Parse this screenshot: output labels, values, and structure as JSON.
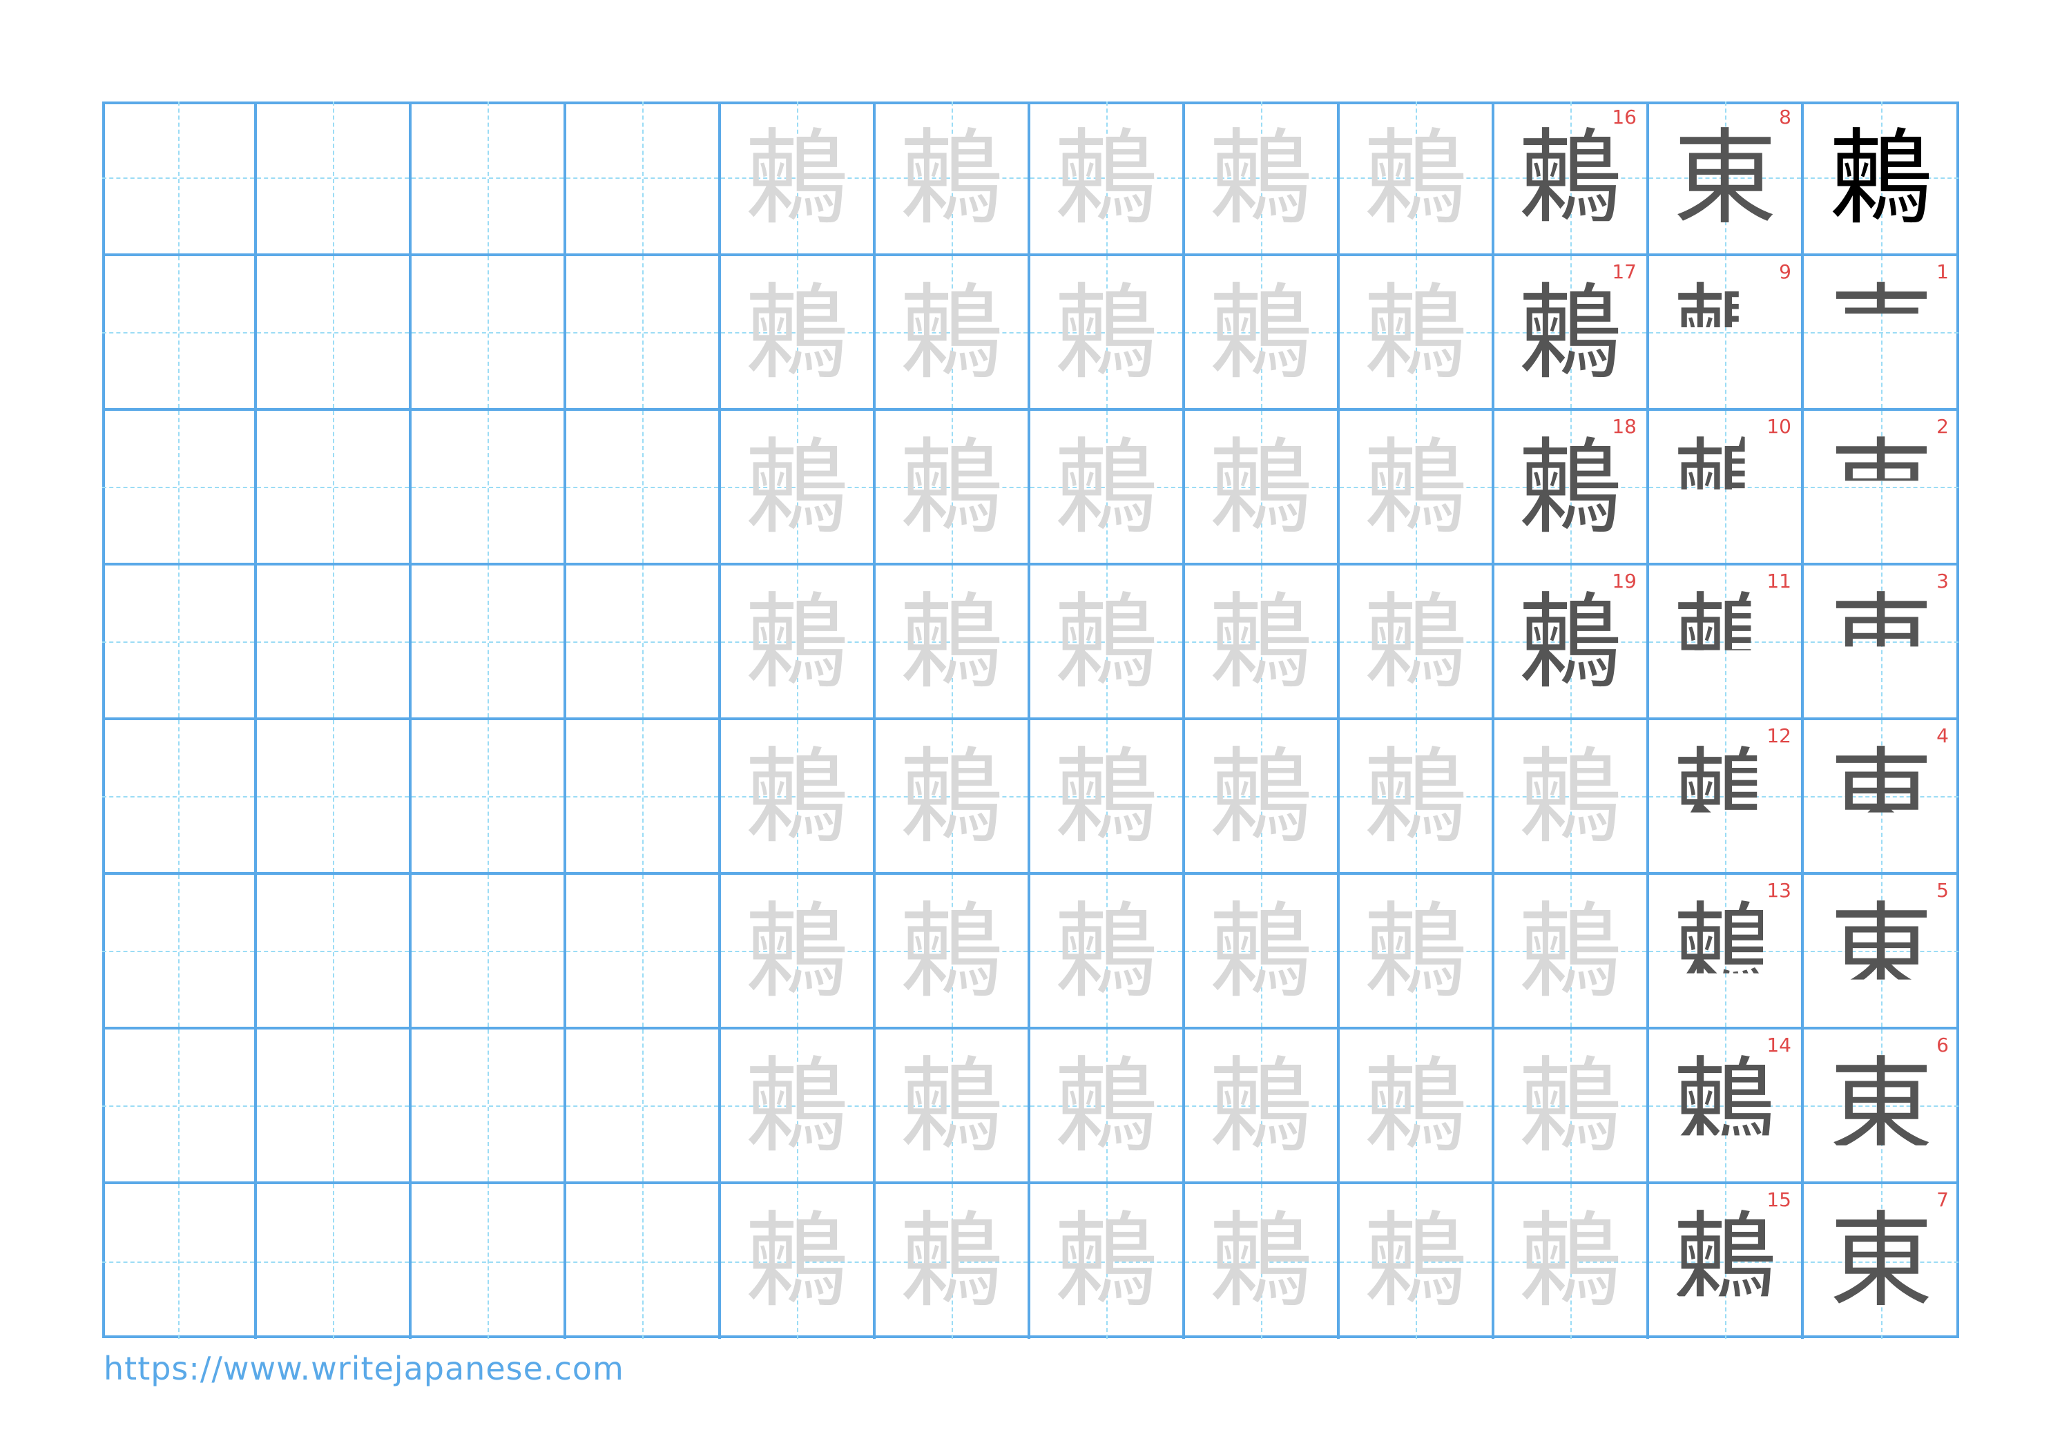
{
  "character": "鶫",
  "model_color": "#000000",
  "step_color": "#555555",
  "trace_color": "#d8d8d8",
  "grid_color": "#5aa9e8",
  "number_color": "#e04848",
  "stroke_count": 19,
  "steps": [
    {
      "number": "1"
    },
    {
      "number": "2"
    },
    {
      "number": "3"
    },
    {
      "number": "4"
    },
    {
      "number": "5"
    },
    {
      "number": "6"
    },
    {
      "number": "7"
    },
    {
      "number": "8"
    },
    {
      "number": "9"
    },
    {
      "number": "10"
    },
    {
      "number": "11"
    },
    {
      "number": "12"
    },
    {
      "number": "13"
    },
    {
      "number": "14"
    },
    {
      "number": "15"
    },
    {
      "number": "16"
    },
    {
      "number": "17"
    },
    {
      "number": "18"
    },
    {
      "number": "19"
    }
  ],
  "partial_radical": "東",
  "footer": {
    "url": "https://www.writejapanese.com"
  }
}
